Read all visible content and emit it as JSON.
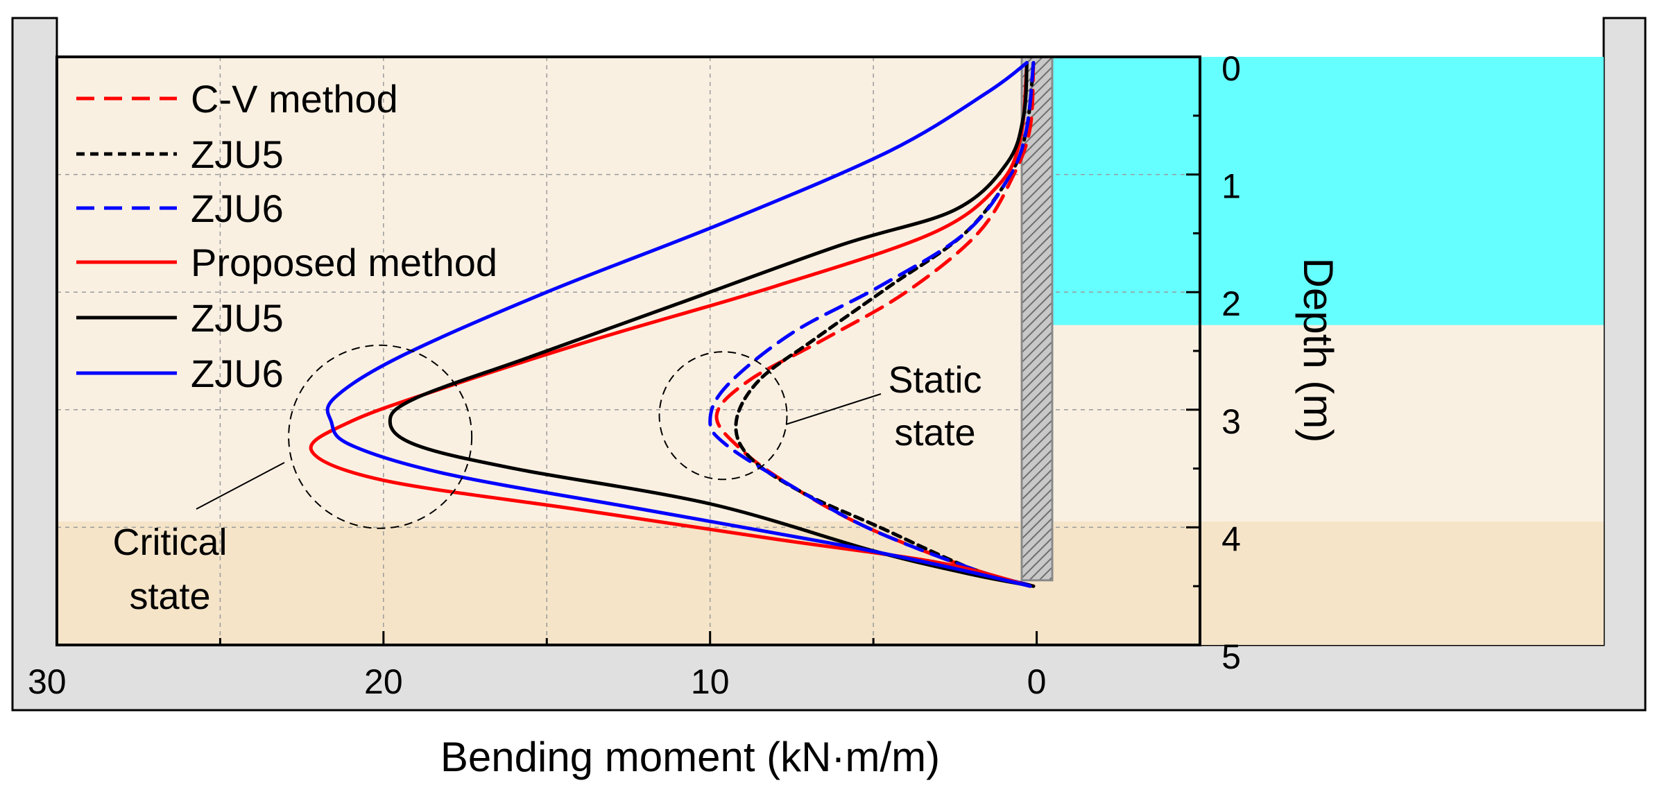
{
  "chart_data": {
    "type": "line",
    "title": "",
    "xlabel": "Bending moment (kN·m/m)",
    "ylabel": "Depth (m)",
    "xlim": [
      30,
      -5
    ],
    "ylim": [
      0,
      5
    ],
    "x_axis_reversed": true,
    "y_axis_reversed": true,
    "x_ticks": [
      "30",
      "20",
      "10",
      "0"
    ],
    "y_ticks": [
      "0",
      "1",
      "2",
      "3",
      "4",
      "5"
    ],
    "grid": true,
    "legend_position": "top-left",
    "colors": {
      "soil": "#faf0e2",
      "soil_deep": "#f5e4c8",
      "water": "#66ffff",
      "tank": "#e0e0e0",
      "red": "#ff0000",
      "black": "#000000",
      "blue": "#0000ff",
      "wall": "#a8a8a8"
    },
    "layers": {
      "water_bottom_depth": 2.28,
      "deep_soil_top_depth": 3.95,
      "wall_bottom_depth": 4.45
    },
    "series": [
      {
        "name": "C-V method",
        "style": "dashed",
        "color": "#ff0000",
        "points": [
          [
            0.1,
            0.05
          ],
          [
            0.2,
            0.6
          ],
          [
            0.7,
            1.0
          ],
          [
            1.8,
            1.5
          ],
          [
            4.0,
            2.0
          ],
          [
            6.5,
            2.4
          ],
          [
            8.8,
            2.75
          ],
          [
            9.8,
            3.05
          ],
          [
            9.0,
            3.35
          ],
          [
            7.5,
            3.65
          ],
          [
            5.2,
            4.0
          ],
          [
            2.0,
            4.35
          ],
          [
            0.1,
            4.5
          ]
        ]
      },
      {
        "name": "ZJU5",
        "style": "dotted",
        "color": "#000000",
        "points": [
          [
            0.1,
            0.05
          ],
          [
            0.3,
            0.6
          ],
          [
            0.8,
            1.0
          ],
          [
            2.2,
            1.5
          ],
          [
            4.5,
            1.95
          ],
          [
            6.8,
            2.4
          ],
          [
            8.5,
            2.75
          ],
          [
            9.2,
            3.1
          ],
          [
            8.8,
            3.4
          ],
          [
            7.2,
            3.7
          ],
          [
            4.8,
            4.0
          ],
          [
            2.0,
            4.35
          ],
          [
            0.1,
            4.5
          ]
        ]
      },
      {
        "name": "ZJU6",
        "style": "dashed",
        "color": "#0000ff",
        "points": [
          [
            0.1,
            0.05
          ],
          [
            0.3,
            0.6
          ],
          [
            0.8,
            1.0
          ],
          [
            2.2,
            1.5
          ],
          [
            4.8,
            1.95
          ],
          [
            7.5,
            2.35
          ],
          [
            9.5,
            2.8
          ],
          [
            10.0,
            3.1
          ],
          [
            9.5,
            3.3
          ],
          [
            7.8,
            3.6
          ],
          [
            5.2,
            4.0
          ],
          [
            2.0,
            4.35
          ],
          [
            0.1,
            4.5
          ]
        ]
      },
      {
        "name": "Proposed method",
        "style": "solid",
        "color": "#ff0000",
        "points": [
          [
            0.3,
            0.05
          ],
          [
            0.5,
            0.7
          ],
          [
            1.2,
            1.1
          ],
          [
            3.2,
            1.5
          ],
          [
            8.0,
            1.95
          ],
          [
            13.5,
            2.4
          ],
          [
            18.0,
            2.8
          ],
          [
            21.0,
            3.1
          ],
          [
            22.2,
            3.35
          ],
          [
            20.0,
            3.6
          ],
          [
            14.0,
            3.85
          ],
          [
            8.0,
            4.1
          ],
          [
            3.0,
            4.3
          ],
          [
            0.2,
            4.5
          ]
        ]
      },
      {
        "name": "ZJU5",
        "style": "solid",
        "color": "#000000",
        "points": [
          [
            0.3,
            0.05
          ],
          [
            0.4,
            0.5
          ],
          [
            0.9,
            0.9
          ],
          [
            2.5,
            1.3
          ],
          [
            6.0,
            1.6
          ],
          [
            11.0,
            2.1
          ],
          [
            15.5,
            2.55
          ],
          [
            19.0,
            2.9
          ],
          [
            19.8,
            3.1
          ],
          [
            19.0,
            3.3
          ],
          [
            16.0,
            3.5
          ],
          [
            10.0,
            3.8
          ],
          [
            5.0,
            4.2
          ],
          [
            2.0,
            4.4
          ],
          [
            0.1,
            4.5
          ]
        ]
      },
      {
        "name": "ZJU6",
        "style": "solid",
        "color": "#0000ff",
        "points": [
          [
            0.3,
            0.05
          ],
          [
            1.5,
            0.3
          ],
          [
            4.5,
            0.8
          ],
          [
            9.5,
            1.4
          ],
          [
            15.0,
            2.0
          ],
          [
            19.5,
            2.55
          ],
          [
            21.5,
            2.9
          ],
          [
            21.6,
            3.1
          ],
          [
            21.0,
            3.3
          ],
          [
            18.0,
            3.55
          ],
          [
            12.0,
            3.85
          ],
          [
            6.0,
            4.15
          ],
          [
            2.5,
            4.35
          ],
          [
            0.2,
            4.5
          ]
        ]
      }
    ],
    "annotations": [
      {
        "lines": [
          "Static",
          "state"
        ]
      },
      {
        "lines": [
          "Critical",
          "state"
        ]
      }
    ]
  }
}
